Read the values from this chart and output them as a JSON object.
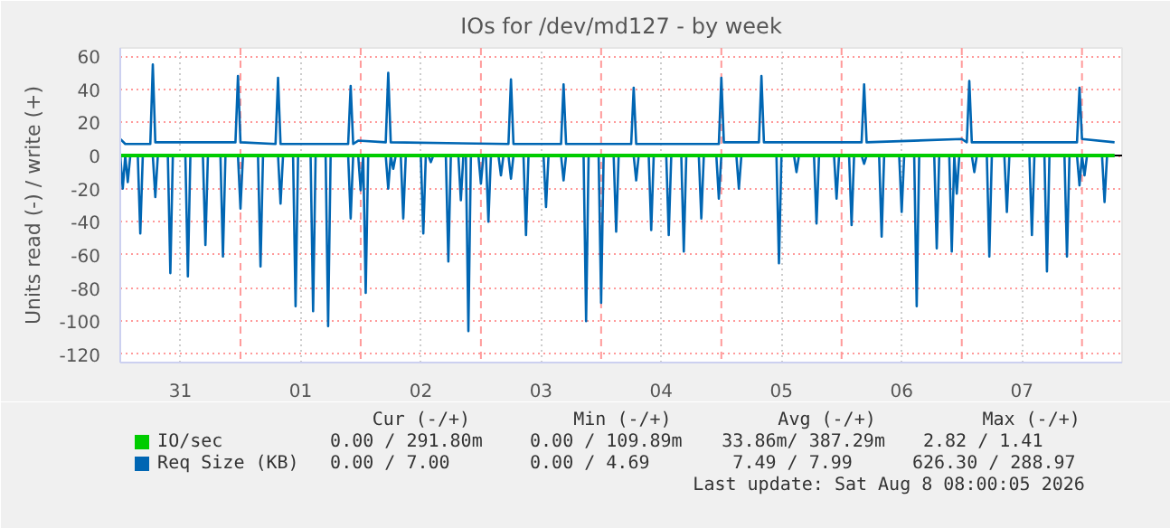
{
  "chart_data": {
    "type": "line",
    "title": "IOs for /dev/md127 - by week",
    "ylabel": "Units read (-) / write (+)",
    "xlim": [
      "2026-07-31T00:00",
      "2026-08-08T08:00"
    ],
    "xticks": [
      {
        "value": "2026-07-31T12:00",
        "label": "31"
      },
      {
        "value": "2026-08-01T12:00",
        "label": "01"
      },
      {
        "value": "2026-08-02T12:00",
        "label": "02"
      },
      {
        "value": "2026-08-03T12:00",
        "label": "03"
      },
      {
        "value": "2026-08-04T12:00",
        "label": "04"
      },
      {
        "value": "2026-08-05T12:00",
        "label": "05"
      },
      {
        "value": "2026-08-06T12:00",
        "label": "06"
      },
      {
        "value": "2026-08-07T12:00",
        "label": "07"
      }
    ],
    "ylim": [
      -125,
      65
    ],
    "yticks": [
      -120,
      -100,
      -80,
      -60,
      -40,
      -20,
      0,
      20,
      40,
      60
    ],
    "grid": true,
    "legend": "bottom left",
    "ref_lines": [
      {
        "axis": "x",
        "value": "2026-08-01T00:00",
        "color": "#ff9a9a",
        "line_style": "dashed"
      },
      {
        "axis": "x",
        "value": "2026-08-02T00:00",
        "color": "#ff9a9a",
        "line_style": "dashed"
      },
      {
        "axis": "x",
        "value": "2026-08-03T00:00",
        "color": "#ff9a9a",
        "line_style": "dashed"
      },
      {
        "axis": "x",
        "value": "2026-08-04T00:00",
        "color": "#ff9a9a",
        "line_style": "dashed"
      },
      {
        "axis": "x",
        "value": "2026-08-05T00:00",
        "color": "#ff9a9a",
        "line_style": "dashed"
      },
      {
        "axis": "x",
        "value": "2026-08-06T00:00",
        "color": "#ff9a9a",
        "line_style": "dashed"
      },
      {
        "axis": "x",
        "value": "2026-08-07T00:00",
        "color": "#ff9a9a",
        "line_style": "dashed"
      },
      {
        "axis": "x",
        "value": "2026-08-08T00:00",
        "color": "#ff9a9a",
        "line_style": "dashed"
      },
      {
        "axis": "y",
        "value": 0,
        "color": "#000000",
        "line_style": "solid"
      }
    ],
    "annotations": [
      "Cur (-/+)",
      "Min (-/+)",
      "Avg (-/+)",
      "Max (-/+)",
      "0.00 /  291.80m",
      "0.00 /  109.89m",
      "33.86m/  387.29m",
      "2.82 /     1.41",
      "0.00 /     7.00",
      "0.00 /     4.69",
      "7.49 /     7.99",
      "626.30 /  288.97",
      "Last update: Sat Aug  8 08:00:05 2026"
    ],
    "series": [
      {
        "color": "#0066b3",
        "x": [
          "2026-07-31T00:00",
          "2026-07-31T00:30",
          "2026-07-31T01:00",
          "2026-07-31T01:30",
          "2026-07-31T02:00",
          "2026-07-31T03:30",
          "2026-07-31T04:00",
          "2026-07-31T04:30",
          "2026-07-31T06:30",
          "2026-07-31T07:00",
          "2026-07-31T07:30",
          "2026-07-31T09:30",
          "2026-07-31T10:00",
          "2026-07-31T10:30",
          "2026-07-31T13:00",
          "2026-07-31T13:30",
          "2026-07-31T14:00",
          "2026-07-31T16:30",
          "2026-07-31T17:00",
          "2026-07-31T17:30",
          "2026-07-31T20:00",
          "2026-07-31T20:30",
          "2026-07-31T21:00",
          "2026-07-31T23:30",
          "2026-08-01T00:00",
          "2026-08-01T00:30",
          "2026-08-01T03:30",
          "2026-08-01T04:00",
          "2026-08-01T04:30",
          "2026-08-01T07:30",
          "2026-08-01T08:00",
          "2026-08-01T08:30",
          "2026-08-01T10:30",
          "2026-08-01T11:00",
          "2026-08-01T11:30",
          "2026-08-01T14:00",
          "2026-08-01T14:30",
          "2026-08-01T15:00",
          "2026-08-01T17:00",
          "2026-08-01T17:30",
          "2026-08-01T18:00",
          "2026-08-01T21:30",
          "2026-08-01T22:00",
          "2026-08-01T22:30",
          "2026-08-01T23:30",
          "2026-08-02T00:00",
          "2026-08-02T00:30",
          "2026-08-02T01:00",
          "2026-08-02T01:30",
          "2026-08-02T05:00",
          "2026-08-02T05:30",
          "2026-08-02T06:00",
          "2026-08-02T06:30",
          "2026-08-02T07:00",
          "2026-08-02T08:00",
          "2026-08-02T08:30",
          "2026-08-02T09:00",
          "2026-08-02T12:00",
          "2026-08-02T12:30",
          "2026-08-02T13:00",
          "2026-08-02T13:30",
          "2026-08-02T14:00",
          "2026-08-02T14:30",
          "2026-08-02T17:00",
          "2026-08-02T17:30",
          "2026-08-02T18:00",
          "2026-08-02T19:30",
          "2026-08-02T20:00",
          "2026-08-02T20:30",
          "2026-08-02T21:00",
          "2026-08-02T21:30",
          "2026-08-02T22:00",
          "2026-08-02T23:30",
          "2026-08-03T00:00",
          "2026-08-03T00:30",
          "2026-08-03T01:00",
          "2026-08-03T01:30",
          "2026-08-03T02:00",
          "2026-08-03T03:30",
          "2026-08-03T04:00",
          "2026-08-03T04:30",
          "2026-08-03T05:30",
          "2026-08-03T06:00",
          "2026-08-03T06:30",
          "2026-08-03T08:30",
          "2026-08-03T09:00",
          "2026-08-03T09:30",
          "2026-08-03T12:30",
          "2026-08-03T13:00",
          "2026-08-03T13:30",
          "2026-08-03T16:00",
          "2026-08-03T16:30",
          "2026-08-03T17:00",
          "2026-08-03T20:30",
          "2026-08-03T21:00",
          "2026-08-03T21:30",
          "2026-08-03T23:30",
          "2026-08-04T00:00",
          "2026-08-04T00:30",
          "2026-08-04T02:30",
          "2026-08-04T03:00",
          "2026-08-04T03:30",
          "2026-08-04T06:30",
          "2026-08-04T07:00",
          "2026-08-04T07:30",
          "2026-08-04T09:30",
          "2026-08-04T10:00",
          "2026-08-04T10:30",
          "2026-08-04T13:00",
          "2026-08-04T13:30",
          "2026-08-04T14:00",
          "2026-08-04T16:00",
          "2026-08-04T16:30",
          "2026-08-04T17:00",
          "2026-08-04T19:30",
          "2026-08-04T20:00",
          "2026-08-04T20:30",
          "2026-08-04T23:00",
          "2026-08-04T23:30",
          "2026-08-05T00:00",
          "2026-08-05T03:00",
          "2026-08-05T03:30",
          "2026-08-05T04:00",
          "2026-08-05T11:00",
          "2026-08-05T11:30",
          "2026-08-05T12:00",
          "2026-08-05T14:30",
          "2026-08-05T15:00",
          "2026-08-05T15:30",
          "2026-08-05T18:30",
          "2026-08-05T19:00",
          "2026-08-05T19:30",
          "2026-08-05T22:30",
          "2026-08-05T23:00",
          "2026-08-05T23:30",
          "2026-08-06T01:30",
          "2026-08-06T02:00",
          "2026-08-06T02:30",
          "2026-08-06T04:00",
          "2026-08-06T04:30",
          "2026-08-06T05:00",
          "2026-08-06T07:30",
          "2026-08-06T08:00",
          "2026-08-06T08:30",
          "2026-08-06T11:30",
          "2026-08-06T12:00",
          "2026-08-06T12:30",
          "2026-08-06T14:30",
          "2026-08-06T15:00",
          "2026-08-06T15:30",
          "2026-08-06T18:30",
          "2026-08-06T19:00",
          "2026-08-06T19:30",
          "2026-08-06T21:30",
          "2026-08-06T22:00",
          "2026-08-06T22:30",
          "2026-08-06T23:00",
          "2026-08-06T23:30",
          "2026-08-07T02:00",
          "2026-08-07T02:30",
          "2026-08-07T03:00",
          "2026-08-07T05:00",
          "2026-08-07T05:30",
          "2026-08-07T06:00",
          "2026-08-07T08:30",
          "2026-08-07T09:00",
          "2026-08-07T09:30",
          "2026-08-07T13:30",
          "2026-08-07T14:00",
          "2026-08-07T14:30",
          "2026-08-07T16:30",
          "2026-08-07T17:00",
          "2026-08-07T17:30",
          "2026-08-07T20:30",
          "2026-08-07T21:00",
          "2026-08-07T21:30",
          "2026-08-07T23:00",
          "2026-08-07T23:30",
          "2026-08-08T00:00",
          "2026-08-08T00:30",
          "2026-08-08T01:00",
          "2026-08-08T04:00",
          "2026-08-08T04:30",
          "2026-08-08T05:00",
          "2026-08-08T06:30"
        ],
        "values": [
          0,
          -20,
          0,
          -16,
          0,
          0,
          -47,
          0,
          0,
          -25,
          0,
          0,
          -71,
          0,
          0,
          -73,
          0,
          0,
          -54,
          0,
          0,
          -61,
          0,
          0,
          -32,
          0,
          0,
          -67,
          0,
          0,
          -29,
          0,
          0,
          -91,
          0,
          0,
          -94,
          0,
          0,
          -103,
          0,
          0,
          -38,
          0,
          0,
          -21,
          0,
          -83,
          0,
          0,
          -20,
          0,
          -8,
          0,
          0,
          -38,
          0,
          0,
          -47,
          0,
          0,
          -4,
          0,
          0,
          -64,
          0,
          0,
          -27,
          0,
          0,
          -106,
          0,
          0,
          -17,
          0,
          0,
          -40,
          0,
          0,
          -12,
          0,
          0,
          -14,
          0,
          0,
          -48,
          0,
          0,
          -31,
          0,
          0,
          -15,
          0,
          0,
          -100,
          0,
          0,
          -89,
          0,
          0,
          -46,
          0,
          0,
          -15,
          0,
          0,
          -45,
          0,
          0,
          -48,
          0,
          0,
          -58,
          0,
          0,
          -38,
          0,
          0,
          -26,
          0,
          0,
          -20,
          0,
          0,
          -65,
          0,
          0,
          -10,
          0,
          0,
          -41,
          0,
          0,
          -26,
          0,
          0,
          -42,
          0,
          0,
          -5,
          0,
          0,
          -49,
          0,
          0,
          -34,
          0,
          0,
          -91,
          0,
          0,
          -56,
          0,
          0,
          -58,
          0,
          -23,
          0,
          0,
          -10,
          0,
          0,
          -61,
          0,
          0,
          -34,
          0,
          0,
          -48,
          0,
          0,
          -70,
          0,
          0,
          -61,
          0,
          0,
          -18,
          0,
          -12,
          0,
          0,
          -28,
          0,
          0
        ]
      },
      {
        "name": "Req Size (KB)",
        "color": "#0066b3",
        "x": [
          "2026-07-31T00:00",
          "2026-07-31T01:00",
          "2026-07-31T06:00",
          "2026-07-31T06:30",
          "2026-07-31T07:00",
          "2026-07-31T23:00",
          "2026-07-31T23:30",
          "2026-08-01T00:00",
          "2026-08-01T07:00",
          "2026-08-01T07:30",
          "2026-08-01T08:00",
          "2026-08-01T21:30",
          "2026-08-01T22:00",
          "2026-08-01T22:30",
          "2026-08-01T23:30",
          "2026-08-02T05:00",
          "2026-08-02T05:30",
          "2026-08-02T06:00",
          "2026-08-03T05:30",
          "2026-08-03T06:00",
          "2026-08-03T06:30",
          "2026-08-03T16:00",
          "2026-08-03T16:30",
          "2026-08-03T17:00",
          "2026-08-04T06:00",
          "2026-08-04T06:30",
          "2026-08-04T07:00",
          "2026-08-04T23:30",
          "2026-08-05T00:00",
          "2026-08-05T00:30",
          "2026-08-05T07:30",
          "2026-08-05T08:00",
          "2026-08-05T08:30",
          "2026-08-06T04:00",
          "2026-08-06T04:30",
          "2026-08-06T05:00",
          "2026-08-07T00:00",
          "2026-08-07T01:00",
          "2026-08-07T01:30",
          "2026-08-07T02:00",
          "2026-08-07T23:00",
          "2026-08-07T23:30",
          "2026-08-08T00:00",
          "2026-08-08T06:30"
        ],
        "values": [
          10,
          7,
          7,
          55,
          8,
          8,
          48,
          8,
          7,
          47,
          7,
          7,
          42,
          7,
          9,
          8,
          50,
          8,
          7,
          46,
          7,
          7,
          43,
          7,
          7,
          41,
          7,
          7,
          47,
          8,
          8,
          48,
          8,
          8,
          43,
          8,
          10,
          8,
          45,
          8,
          8,
          41,
          10,
          8
        ]
      },
      {
        "name": "IO/sec",
        "color": "#00cc00",
        "x": [
          "2026-07-31T00:00",
          "2026-08-08T06:30"
        ],
        "values": [
          0,
          0
        ]
      }
    ]
  }
}
